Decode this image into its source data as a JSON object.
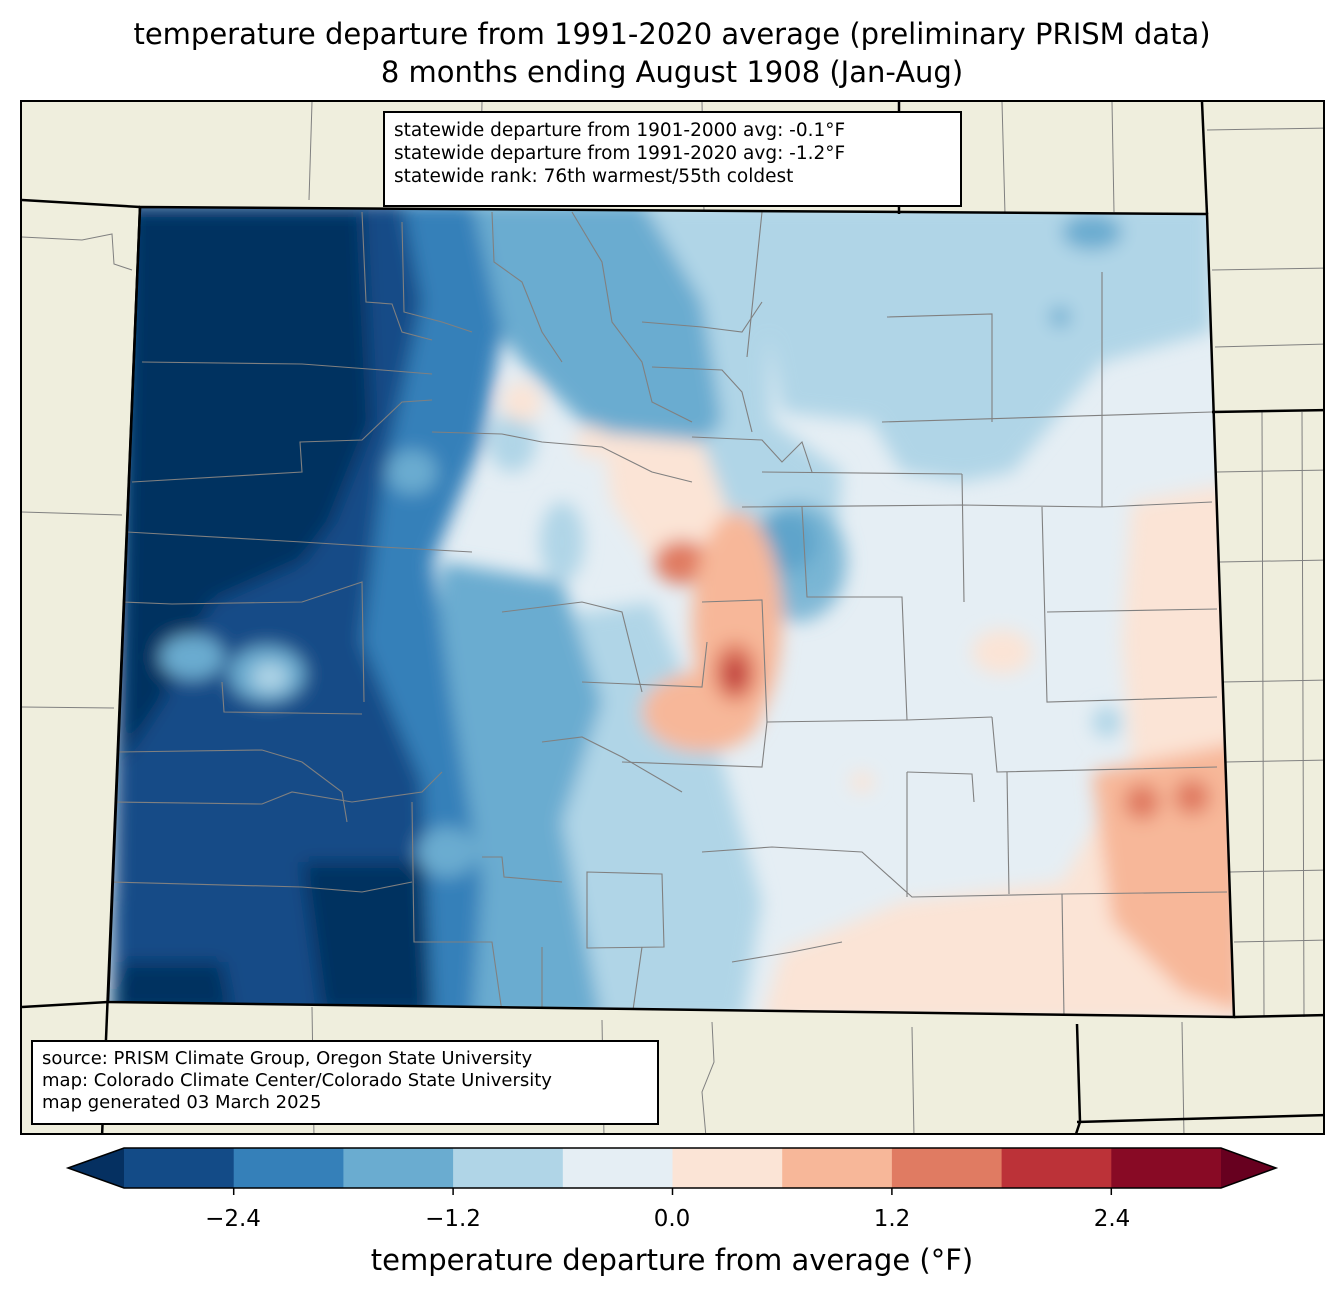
{
  "title": {
    "line1": "temperature departure from 1991-2020 average (preliminary PRISM data)",
    "line2": "8 months ending August 1908 (Jan-Aug)"
  },
  "stats": {
    "line1": "statewide departure from 1901-2000 avg: -0.1°F",
    "line2": "statewide departure from 1991-2020 avg: -1.2°F",
    "line3": "statewide rank: 76th warmest/55th coldest"
  },
  "credits": {
    "source": "source: PRISM Climate Group, Oregon State University",
    "map": "map: Colorado Climate Center/Colorado State University",
    "generated": "map generated 03 March 2025"
  },
  "colorbar": {
    "label": "temperature departure from average (°F)",
    "ticks": [
      "−2.4",
      "−1.2",
      "0.0",
      "1.2",
      "2.4"
    ],
    "bins": [
      -3.0,
      -2.4,
      -1.8,
      -1.2,
      -0.6,
      0.0,
      0.6,
      1.2,
      1.8,
      2.4,
      3.0
    ],
    "colors": {
      "under": "#053061",
      "b1": "#134b87",
      "b2": "#3580b9",
      "b3": "#6aacd0",
      "b4": "#b0d5e7",
      "b5": "#e5eef4",
      "b6": "#fbe4d6",
      "b7": "#f7b799",
      "b8": "#e07b62",
      "b9": "#bc3238",
      "b10": "#880a25",
      "over": "#67001f"
    }
  },
  "map_colors": {
    "land": "#efeedd",
    "state_border": "#000000",
    "county_border": "#808080"
  }
}
